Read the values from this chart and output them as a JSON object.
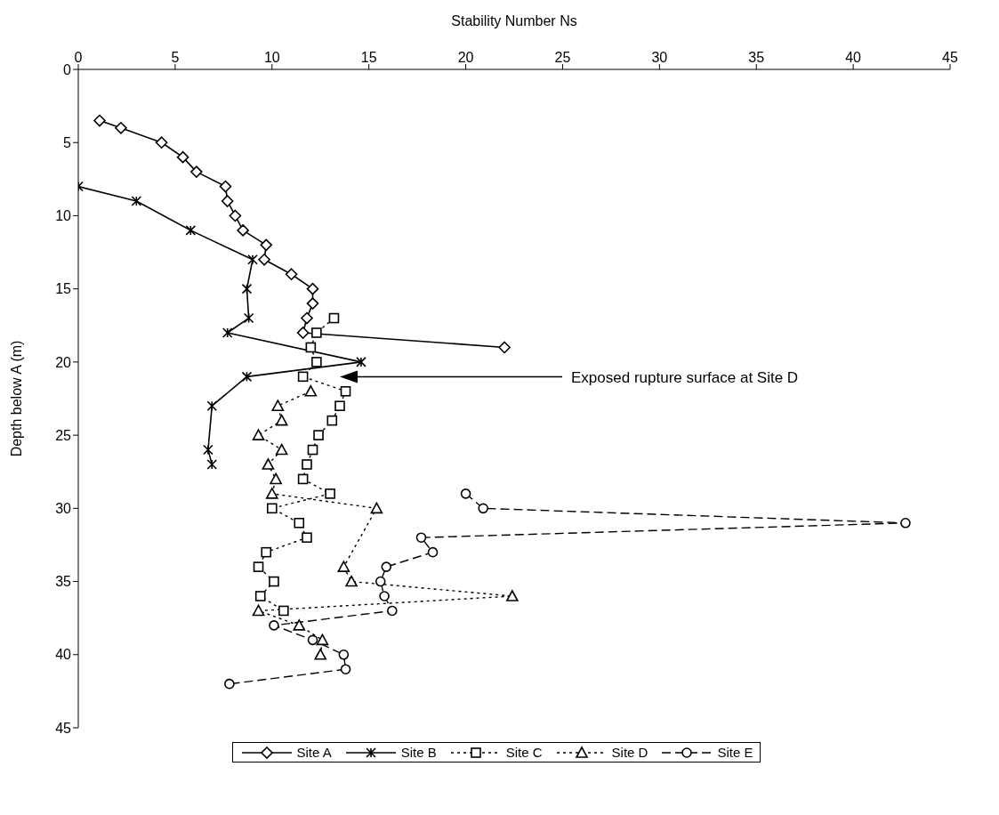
{
  "chart_data": {
    "type": "line",
    "xlabel": "Stability Number Ns",
    "ylabel": "Depth below A (m)",
    "xlim": [
      0,
      45
    ],
    "xticks": [
      0,
      5,
      10,
      15,
      20,
      25,
      30,
      35,
      40,
      45
    ],
    "ylim": [
      45,
      0
    ],
    "yticks": [
      0,
      5,
      10,
      15,
      20,
      25,
      30,
      35,
      40,
      45
    ],
    "grid": false,
    "legend": "bottom",
    "annotations": [
      "Exposed rupture surface at Site D"
    ],
    "series": [
      {
        "name": "Site A",
        "color": "#000000",
        "marker": "diamond",
        "line_style": "solid",
        "x": [
          1.1,
          2.2,
          4.3,
          5.4,
          6.1,
          7.6,
          7.7,
          8.1,
          8.5,
          9.7,
          9.6,
          11.0,
          12.1,
          12.1,
          11.8,
          11.6,
          22.0
        ],
        "values": [
          3.5,
          4,
          5,
          6,
          7,
          8,
          9,
          10,
          11,
          12,
          13,
          14,
          15,
          16,
          17,
          18,
          19
        ]
      },
      {
        "name": "Site B",
        "color": "#000000",
        "marker": "cross",
        "line_style": "solid",
        "x": [
          0,
          3.0,
          5.8,
          9.0,
          8.7,
          8.8,
          7.7,
          14.6,
          8.7,
          6.9,
          6.7,
          6.9
        ],
        "values": [
          8,
          9,
          11,
          13,
          15,
          17,
          18,
          20,
          21,
          23,
          26,
          27
        ]
      },
      {
        "name": "Site C",
        "color": "#000000",
        "marker": "square",
        "line_style": "dotted",
        "x": [
          13.2,
          12.3,
          12.0,
          12.3,
          11.6,
          13.8,
          13.5,
          13.1,
          12.4,
          12.1,
          11.8,
          11.6,
          13.0,
          10.0,
          11.4,
          11.8,
          9.7,
          9.3,
          10.1,
          9.4,
          10.6
        ],
        "values": [
          17,
          18,
          19,
          20,
          21,
          22,
          23,
          24,
          25,
          26,
          27,
          28,
          29,
          30,
          31,
          32,
          33,
          34,
          35,
          36,
          37
        ]
      },
      {
        "name": "Site D",
        "color": "#000000",
        "marker": "triangle",
        "line_style": "dotted",
        "x": [
          12.0,
          10.3,
          10.5,
          9.3,
          10.5,
          9.8,
          10.2,
          10.0,
          15.4,
          13.7,
          14.1,
          22.4,
          9.3,
          11.4,
          12.6,
          12.5
        ],
        "values": [
          22,
          23,
          24,
          25,
          26,
          27,
          28,
          29,
          30,
          34,
          35,
          36,
          37,
          38,
          39,
          40
        ]
      },
      {
        "name": "Site E",
        "color": "#000000",
        "marker": "circle",
        "line_style": "dashed",
        "x": [
          20.0,
          20.9,
          42.7,
          17.7,
          18.3,
          15.9,
          15.6,
          15.8,
          16.2,
          10.1,
          12.1,
          13.7,
          13.8,
          7.8
        ],
        "values": [
          29,
          30,
          31,
          32,
          33,
          34,
          35,
          36,
          37,
          38,
          39,
          40,
          41,
          42
        ]
      }
    ]
  }
}
